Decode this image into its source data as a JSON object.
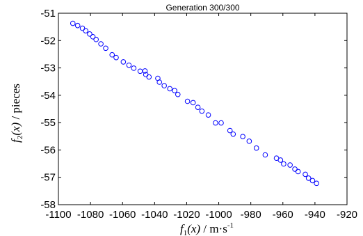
{
  "chart_data": {
    "type": "scatter",
    "title": "Generation 300/300",
    "xlabel": {
      "prefix": "f",
      "sub": "1",
      "arg": "(x)",
      "unit": " / m·s",
      "unit_sup": "-1"
    },
    "ylabel": {
      "prefix": "f",
      "sub": "2",
      "arg": "(x)",
      "unit": " / pieces"
    },
    "xlim": [
      -1100,
      -920
    ],
    "ylim": [
      -58,
      -51
    ],
    "xticks": [
      -1100,
      -1080,
      -1060,
      -1040,
      -1020,
      -1000,
      -980,
      -960,
      -940,
      -920
    ],
    "yticks": [
      -58,
      -57,
      -56,
      -55,
      -54,
      -53,
      -52,
      -51
    ],
    "xtick_labels": [
      "-1100",
      "-1080",
      "-1060",
      "-1040",
      "-1020",
      "-1000",
      "-980",
      "-960",
      "-940",
      "-920"
    ],
    "ytick_labels": [
      "-58",
      "-57",
      "-56",
      "-55",
      "-54",
      "-53",
      "-52",
      "-51"
    ],
    "grid": false,
    "marker": "circle-open",
    "marker_color": "#0000ff",
    "points": [
      [
        -1091,
        -51.37
      ],
      [
        -1088,
        -51.45
      ],
      [
        -1085,
        -51.55
      ],
      [
        -1083,
        -51.64
      ],
      [
        -1080.5,
        -51.76
      ],
      [
        -1078.5,
        -51.86
      ],
      [
        -1076.5,
        -51.96
      ],
      [
        -1073.5,
        -52.12
      ],
      [
        -1070.5,
        -52.28
      ],
      [
        -1066.5,
        -52.52
      ],
      [
        -1064,
        -52.62
      ],
      [
        -1059.5,
        -52.78
      ],
      [
        -1056,
        -52.9
      ],
      [
        -1053,
        -53.01
      ],
      [
        -1049,
        -53.12
      ],
      [
        -1046,
        -53.11
      ],
      [
        -1045.5,
        -53.24
      ],
      [
        -1043.5,
        -53.33
      ],
      [
        -1038,
        -53.38
      ],
      [
        -1037,
        -53.52
      ],
      [
        -1034,
        -53.65
      ],
      [
        -1030.5,
        -53.76
      ],
      [
        -1027.5,
        -53.83
      ],
      [
        -1025.5,
        -53.97
      ],
      [
        -1019.5,
        -54.22
      ],
      [
        -1016,
        -54.27
      ],
      [
        -1013,
        -54.44
      ],
      [
        -1010.5,
        -54.58
      ],
      [
        -1006.5,
        -54.72
      ],
      [
        -1002,
        -55.01
      ],
      [
        -998.5,
        -55.01
      ],
      [
        -993,
        -55.29
      ],
      [
        -991,
        -55.42
      ],
      [
        -985,
        -55.51
      ],
      [
        -981,
        -55.68
      ],
      [
        -976.5,
        -55.93
      ],
      [
        -971,
        -56.18
      ],
      [
        -964,
        -56.3
      ],
      [
        -961.5,
        -56.37
      ],
      [
        -959.5,
        -56.51
      ],
      [
        -955.5,
        -56.55
      ],
      [
        -952.5,
        -56.7
      ],
      [
        -950.5,
        -56.79
      ],
      [
        -946,
        -56.89
      ],
      [
        -944,
        -57.03
      ],
      [
        -941.5,
        -57.12
      ],
      [
        -939,
        -57.22
      ]
    ]
  }
}
